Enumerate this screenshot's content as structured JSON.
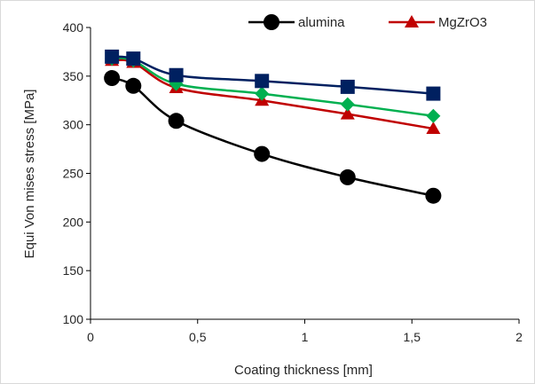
{
  "chart_data": {
    "type": "line",
    "title": "",
    "xlabel": "Coating thickness [mm]",
    "ylabel": "Equi Von mises stress [MPa]",
    "xlim": [
      0,
      2
    ],
    "ylim": [
      100,
      400
    ],
    "xticks": [
      0,
      0.5,
      1,
      1.5,
      2
    ],
    "xtick_labels": [
      "0",
      "0,5",
      "1",
      "1,5",
      "2"
    ],
    "yticks": [
      100,
      150,
      200,
      250,
      300,
      350,
      400
    ],
    "ytick_labels": [
      "100",
      "150",
      "200",
      "250",
      "300",
      "350",
      "400"
    ],
    "grid": false,
    "legend_position": "top-right",
    "x": [
      0.1,
      0.2,
      0.4,
      0.8,
      1.2,
      1.6
    ],
    "series": [
      {
        "name": "alumina",
        "color": "#000000",
        "marker": "circle",
        "values": [
          348,
          340,
          304,
          270,
          246,
          227
        ]
      },
      {
        "name": "MgZrO3",
        "color": "#c00000",
        "marker": "triangle",
        "values": [
          366,
          364,
          338,
          325,
          311,
          296
        ]
      },
      {
        "name": "",
        "color": "#00b050",
        "marker": "diamond",
        "values": [
          368,
          366,
          342,
          332,
          321,
          309
        ]
      },
      {
        "name": "",
        "color": "#002060",
        "marker": "square",
        "values": [
          370,
          368,
          351,
          345,
          339,
          332
        ]
      }
    ]
  }
}
